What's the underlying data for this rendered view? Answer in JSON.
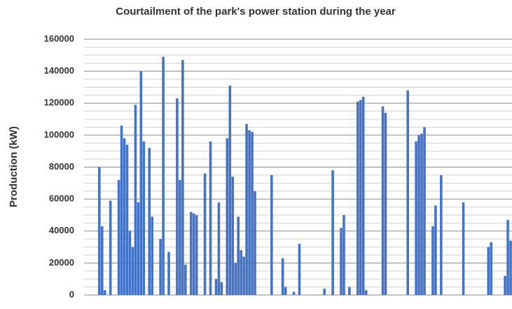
{
  "chart_data": {
    "type": "bar",
    "title": "Courtailment of the park's power station during the year",
    "y_label": "Production (kW)",
    "color": "#4472c4",
    "grid": true,
    "ylim": [
      0,
      160000
    ],
    "yticks": [
      0,
      20000,
      40000,
      60000,
      80000,
      100000,
      120000,
      140000,
      160000
    ],
    "minor_yticks": [
      5000,
      10000,
      15000,
      25000,
      30000,
      35000,
      45000,
      50000,
      55000,
      65000,
      70000,
      75000,
      85000,
      90000,
      95000,
      105000,
      110000,
      115000,
      125000,
      130000,
      135000,
      145000,
      150000,
      155000
    ],
    "categories": [
      null,
      null,
      null,
      null,
      null,
      null,
      null,
      null,
      null,
      null,
      null,
      null,
      null,
      null,
      null,
      null,
      null,
      null,
      null,
      null,
      null,
      null,
      null,
      null,
      null,
      null,
      null,
      null,
      null,
      null,
      null,
      null,
      null,
      null,
      null,
      null,
      null,
      null,
      null,
      null,
      null,
      null,
      null,
      null,
      null,
      null,
      null,
      null,
      null,
      null,
      null,
      null,
      null,
      null,
      null,
      null,
      null,
      null,
      null,
      null,
      null,
      null,
      null,
      null,
      null,
      null,
      null,
      null,
      null,
      null,
      null,
      null,
      null,
      null,
      null,
      null,
      null,
      null,
      null,
      null,
      null,
      null,
      null,
      null,
      null,
      null,
      null,
      null,
      null,
      null,
      null,
      null,
      null,
      null,
      null,
      null,
      null,
      null,
      null,
      null,
      null,
      null,
      null,
      null,
      null,
      null,
      null,
      null,
      null,
      null,
      null,
      null,
      null,
      null,
      null,
      null,
      null,
      null,
      null,
      null,
      null,
      null,
      null,
      null,
      null,
      null,
      null,
      null,
      null,
      null,
      null,
      null,
      null,
      null,
      null,
      null,
      null,
      null,
      null,
      null,
      null,
      null,
      null,
      null,
      null,
      null,
      null,
      null,
      null,
      null,
      null,
      null,
      null,
      null
    ],
    "values": [
      0,
      0,
      0,
      0,
      0,
      80000,
      43000,
      3000,
      0,
      59000,
      0,
      0,
      72000,
      106000,
      98000,
      94000,
      40000,
      30000,
      119000,
      58000,
      140000,
      96000,
      0,
      92000,
      49000,
      0,
      0,
      35000,
      149000,
      0,
      27000,
      0,
      0,
      123000,
      72000,
      147000,
      19000,
      0,
      52000,
      51000,
      50000,
      0,
      0,
      76000,
      0,
      96000,
      0,
      10000,
      58000,
      8000,
      0,
      98000,
      131000,
      74000,
      20000,
      49000,
      28000,
      24000,
      107000,
      103000,
      102000,
      65000,
      0,
      0,
      0,
      0,
      0,
      75000,
      0,
      0,
      0,
      23000,
      5000,
      0,
      0,
      2000,
      0,
      32000,
      0,
      0,
      0,
      0,
      0,
      0,
      0,
      0,
      4000,
      0,
      0,
      78000,
      0,
      0,
      42000,
      50000,
      0,
      5000,
      0,
      0,
      121000,
      122000,
      124000,
      3000,
      0,
      0,
      0,
      0,
      0,
      118000,
      114000,
      0,
      0,
      0,
      0,
      0,
      0,
      0,
      128000,
      0,
      0,
      96000,
      100000,
      101000,
      105000,
      0,
      0,
      43000,
      56000,
      0,
      75000,
      0,
      0,
      0,
      0,
      0,
      0,
      0,
      58000,
      0,
      0,
      0,
      0,
      0,
      0,
      0,
      0,
      30000,
      33000,
      0,
      0,
      0,
      0,
      12000,
      47000,
      34000
    ]
  }
}
